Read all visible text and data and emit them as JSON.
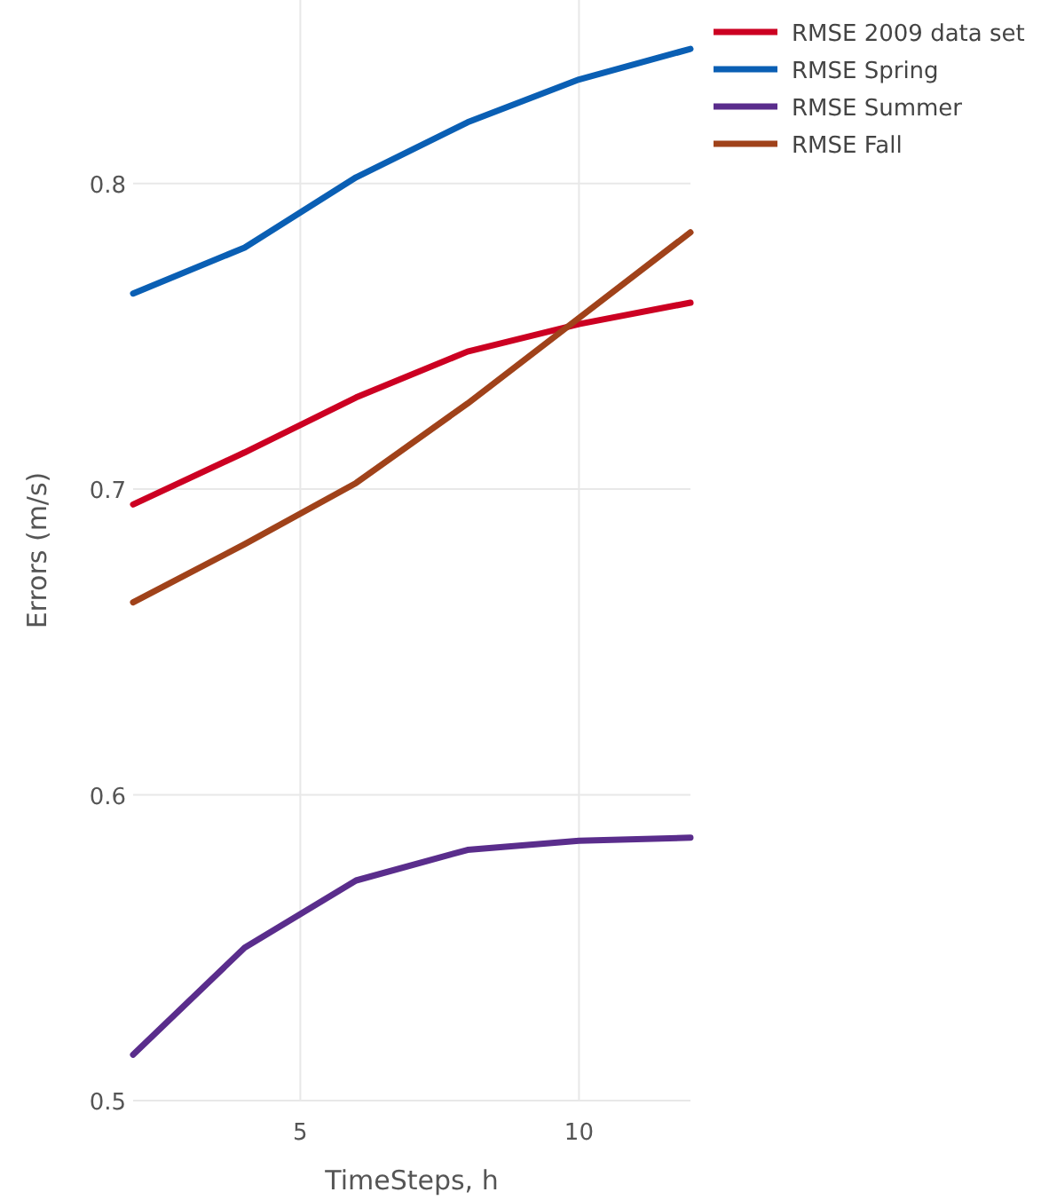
{
  "chart_data": {
    "type": "line",
    "xlabel": "TimeSteps, h",
    "ylabel": "Errors (m/s)",
    "x": [
      2,
      4,
      6,
      8,
      10,
      12
    ],
    "xlim": [
      2,
      12
    ],
    "xticks": [
      5,
      10
    ],
    "ylim": [
      0.5,
      0.86
    ],
    "yticks": [
      0.5,
      0.6,
      0.7,
      0.8
    ],
    "grid": true,
    "legend": "top right",
    "marker": "none",
    "line_style": "solid",
    "series": [
      {
        "name": "RMSE 2009 data set",
        "color": "#cc0022",
        "values": [
          0.695,
          0.712,
          0.73,
          0.745,
          0.754,
          0.761
        ]
      },
      {
        "name": "RMSE Spring",
        "color": "#0a5fb4",
        "values": [
          0.764,
          0.779,
          0.802,
          0.82,
          0.834,
          0.844
        ]
      },
      {
        "name": "RMSE Summer",
        "color": "#5a2d8c",
        "values": [
          0.515,
          0.55,
          0.572,
          0.582,
          0.585,
          0.586
        ]
      },
      {
        "name": "RMSE Fall",
        "color": "#a0421a",
        "values": [
          0.663,
          0.682,
          0.702,
          0.728,
          0.756,
          0.784
        ]
      }
    ]
  }
}
